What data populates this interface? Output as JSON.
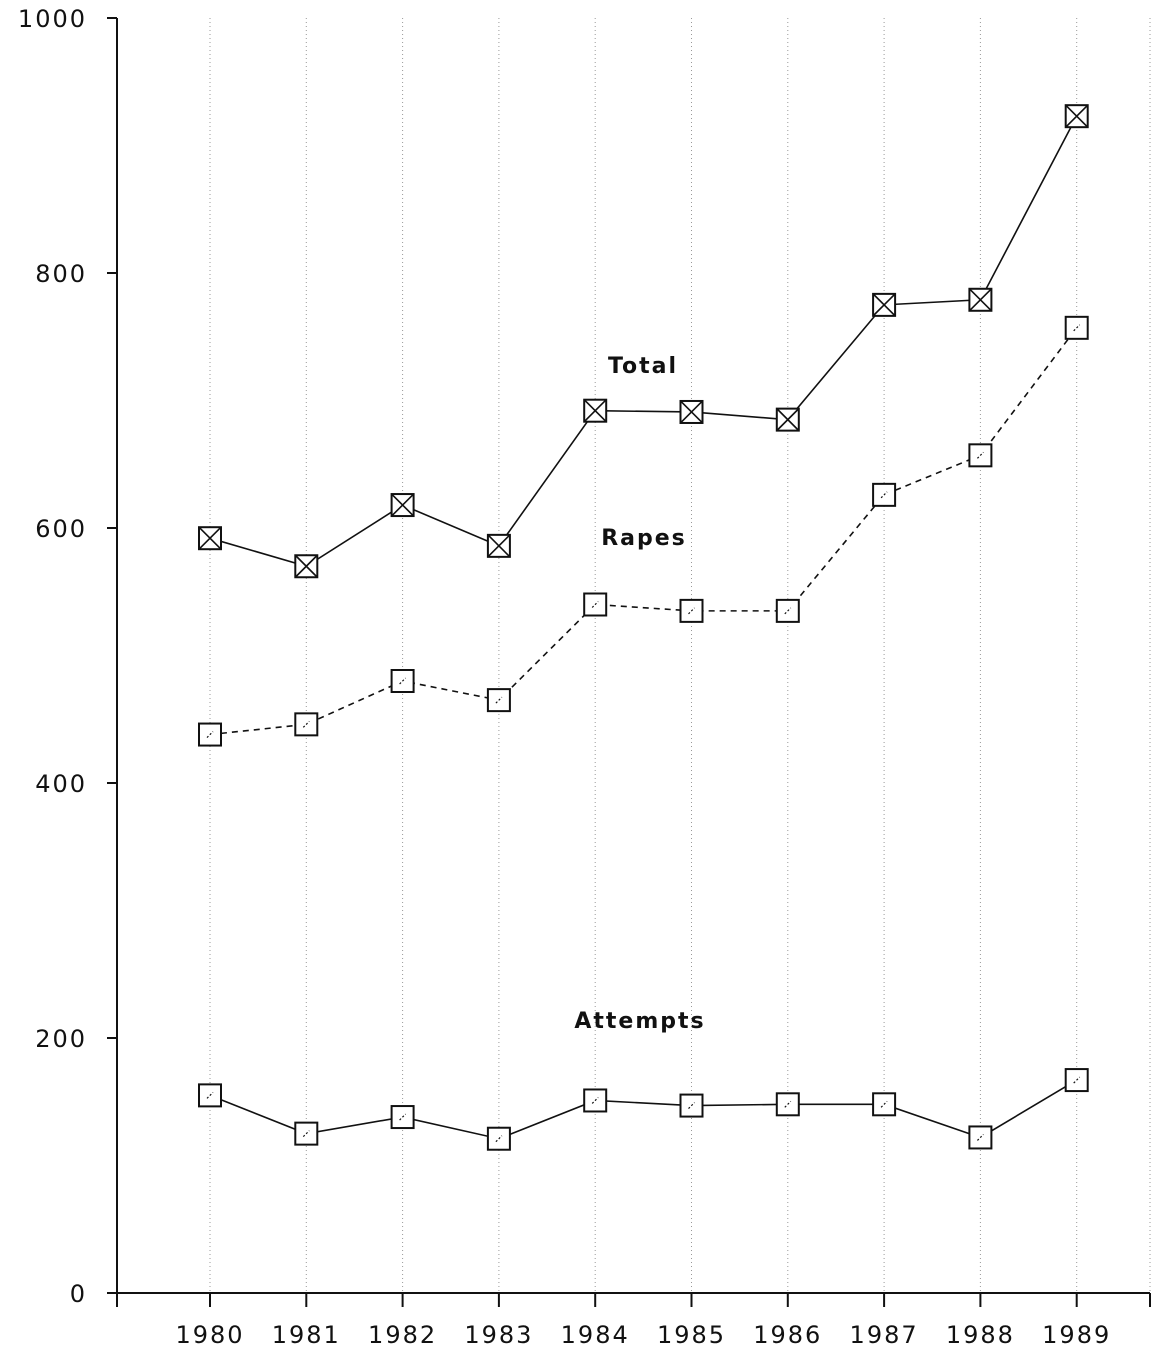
{
  "chart_data": {
    "type": "line",
    "title": "",
    "xlabel": "",
    "ylabel": "",
    "categories": [
      "1980",
      "1981",
      "1982",
      "1983",
      "1984",
      "1985",
      "1986",
      "1987",
      "1988",
      "1989"
    ],
    "ylim": [
      0,
      1000
    ],
    "yticks": [
      "0",
      "200",
      "400",
      "600",
      "800",
      "1000"
    ],
    "grid": "vertical dotted",
    "legend": "none",
    "series": [
      {
        "name": "Total",
        "marker": "box-x",
        "line": "solid",
        "values": [
          592,
          570,
          618,
          586,
          692,
          691,
          685,
          775,
          779,
          923
        ]
      },
      {
        "name": "Rapes",
        "marker": "box",
        "line": "dashed",
        "values": [
          438,
          446,
          480,
          465,
          540,
          535,
          535,
          626,
          657,
          757
        ]
      },
      {
        "name": "Attempts",
        "marker": "box",
        "line": "solid",
        "values": [
          155,
          125,
          138,
          121,
          151,
          147,
          148,
          148,
          122,
          167
        ]
      }
    ]
  }
}
